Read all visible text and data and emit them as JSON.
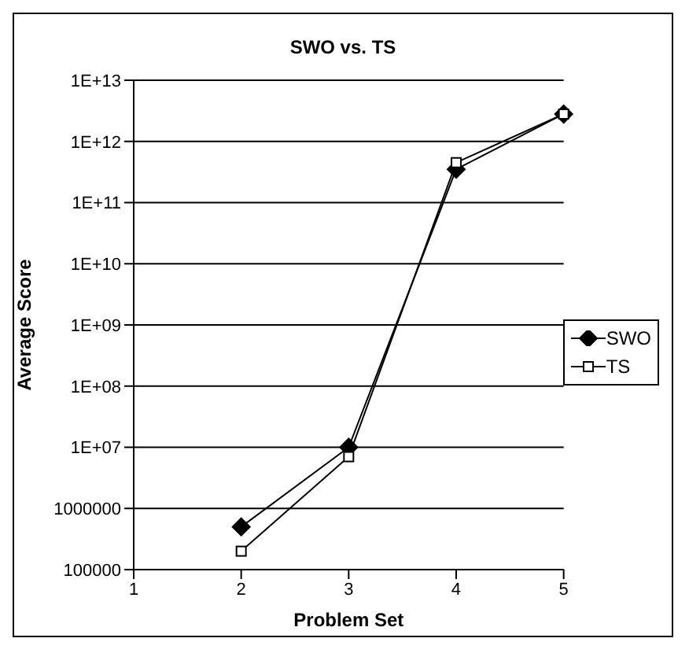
{
  "chart_data": {
    "type": "line",
    "title": "SWO vs. TS",
    "xlabel": "Problem Set",
    "ylabel": "Average Score",
    "categories": [
      "1",
      "2",
      "3",
      "4",
      "5"
    ],
    "series": [
      {
        "name": "SWO",
        "color": "#000000",
        "marker": "diamond",
        "values": [
          null,
          500000,
          10000000,
          350000000000,
          2800000000000
        ]
      },
      {
        "name": "TS",
        "color": "#000000",
        "marker": "square",
        "values": [
          null,
          200000,
          7000000,
          450000000000,
          2800000000000
        ]
      }
    ],
    "log": "y",
    "ylim": [
      100000,
      10000000000000
    ],
    "yticks": [
      100000,
      1000000,
      {
        "value": 10000000,
        "label": "1E+07"
      },
      {
        "value": 100000000,
        "label": "1E+08"
      },
      {
        "value": 1000000000,
        "label": "1E+09"
      },
      {
        "value": 10000000000,
        "label": "1E+10"
      },
      {
        "value": 100000000000,
        "label": "1E+11"
      },
      {
        "value": 1000000000000,
        "label": "1E+12"
      },
      {
        "value": 10000000000000,
        "label": "1E+13"
      }
    ],
    "grid": "y",
    "legend": "right"
  }
}
